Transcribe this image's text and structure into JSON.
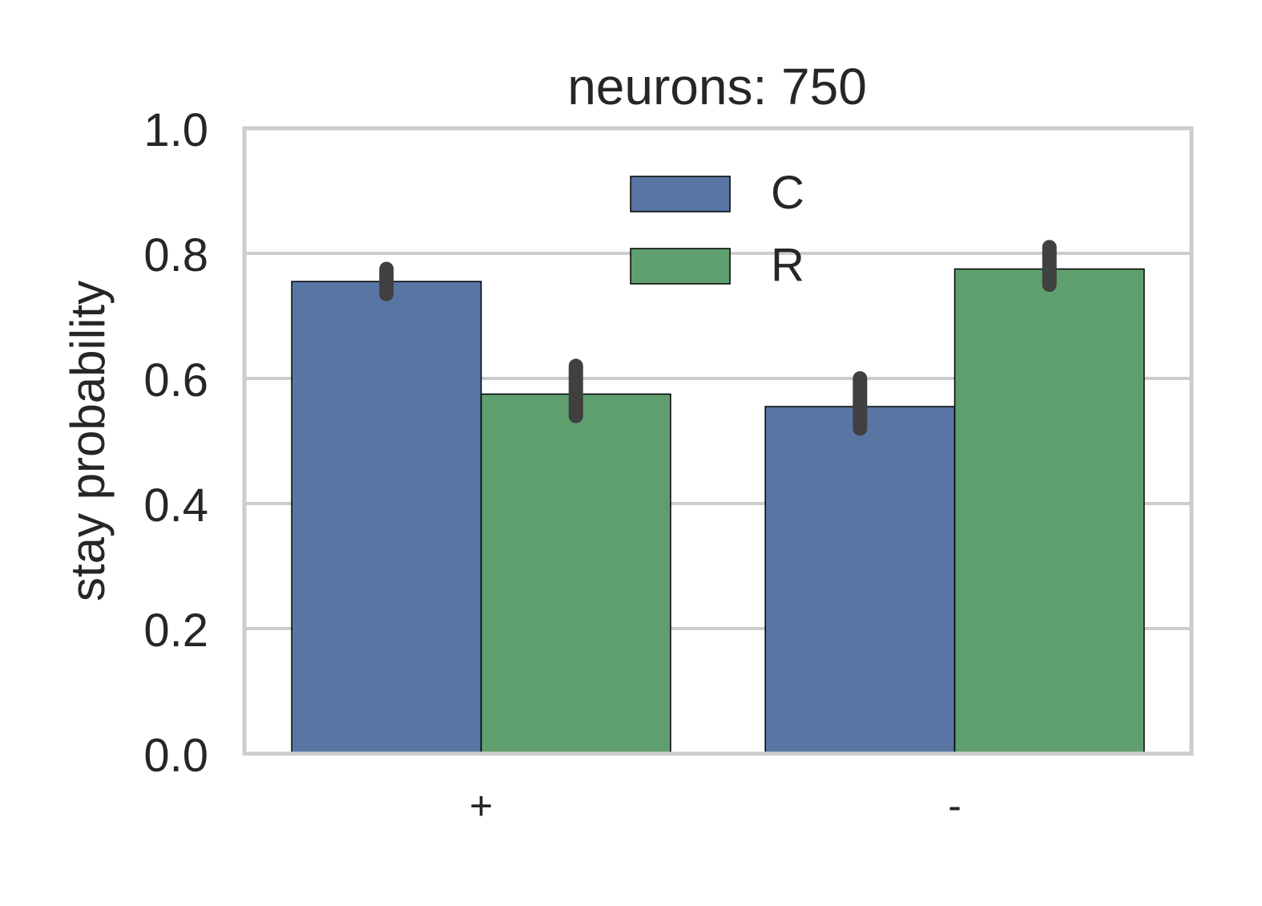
{
  "chart_data": {
    "type": "bar",
    "title": "neurons: 750",
    "xlabel": "",
    "ylabel": "stay probability",
    "categories": [
      "+",
      "-"
    ],
    "ylim": [
      0.0,
      1.0
    ],
    "yticks": [
      "0.0",
      "0.2",
      "0.4",
      "0.6",
      "0.8",
      "1.0"
    ],
    "grid": true,
    "legend_position": "top-center",
    "series": [
      {
        "name": "C",
        "color": "#5975a4",
        "values": [
          0.755,
          0.555
        ],
        "error_low": [
          0.735,
          0.52
        ],
        "error_high": [
          0.775,
          0.6
        ]
      },
      {
        "name": "R",
        "color": "#5f9e6e",
        "values": [
          0.575,
          0.775
        ],
        "error_low": [
          0.54,
          0.75
        ],
        "error_high": [
          0.62,
          0.81
        ]
      }
    ],
    "colors": {
      "grid": "#cccccc",
      "error_bar": "#404040",
      "text": "#262626"
    }
  }
}
